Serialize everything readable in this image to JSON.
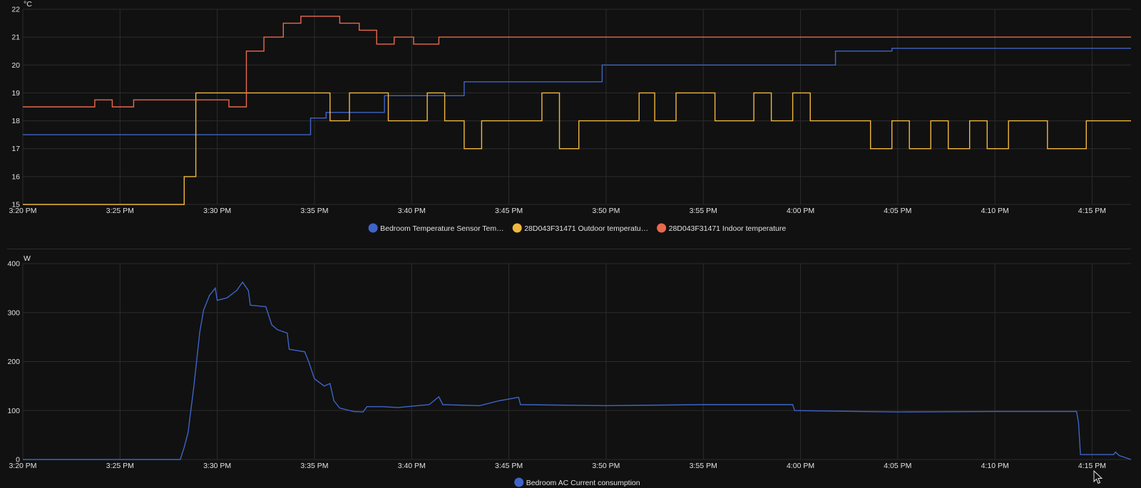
{
  "chart_data": [
    {
      "type": "line",
      "step": true,
      "unit": "°C",
      "ylim": [
        15,
        22
      ],
      "yticks": [
        "15",
        "16",
        "17",
        "18",
        "19",
        "20",
        "21",
        "22"
      ],
      "xlim": [
        "15:20",
        "16:17"
      ],
      "xticks": [
        "3:20 PM",
        "3:25 PM",
        "3:30 PM",
        "3:35 PM",
        "3:40 PM",
        "3:45 PM",
        "3:50 PM",
        "3:55 PM",
        "4:00 PM",
        "4:05 PM",
        "4:10 PM",
        "4:15 PM"
      ],
      "grid": true,
      "legend": "bottom",
      "series": [
        {
          "name": "Bedroom Temperature Sensor Tem…",
          "color": "#3f64c8",
          "points": [
            [
              "15:20",
              17.5
            ],
            [
              "15:34.8",
              17.5
            ],
            [
              "15:34.8",
              18.1
            ],
            [
              "15:35.6",
              18.1
            ],
            [
              "15:35.6",
              18.3
            ],
            [
              "15:38.6",
              18.3
            ],
            [
              "15:38.6",
              18.9
            ],
            [
              "15:42.7",
              18.9
            ],
            [
              "15:42.7",
              19.4
            ],
            [
              "15:49.8",
              19.4
            ],
            [
              "15:49.8",
              20.0
            ],
            [
              "16:01.8",
              20.0
            ],
            [
              "16:01.8",
              20.5
            ],
            [
              "16:04.7",
              20.5
            ],
            [
              "16:04.7",
              20.6
            ],
            [
              "16:17",
              20.6
            ]
          ]
        },
        {
          "name": "28D043F31471 Outdoor temperatu…",
          "color": "#f0b73e",
          "points": [
            [
              "15:20",
              15
            ],
            [
              "15:28.3",
              15
            ],
            [
              "15:28.3",
              16
            ],
            [
              "15:28.9",
              16
            ],
            [
              "15:28.9",
              19
            ],
            [
              "15:35.8",
              19
            ],
            [
              "15:35.8",
              18
            ],
            [
              "15:36.8",
              18
            ],
            [
              "15:36.8",
              19
            ],
            [
              "15:38.8",
              19
            ],
            [
              "15:38.8",
              18
            ],
            [
              "15:40.8",
              18
            ],
            [
              "15:40.8",
              19
            ],
            [
              "15:41.7",
              19
            ],
            [
              "15:41.7",
              18
            ],
            [
              "15:42.7",
              18
            ],
            [
              "15:42.7",
              17
            ],
            [
              "15:43.6",
              17
            ],
            [
              "15:43.6",
              18
            ],
            [
              "15:46.7",
              18
            ],
            [
              "15:46.7",
              19
            ],
            [
              "15:47.6",
              19
            ],
            [
              "15:47.6",
              17
            ],
            [
              "15:48.6",
              17
            ],
            [
              "15:48.6",
              18
            ],
            [
              "15:51.7",
              18
            ],
            [
              "15:51.7",
              19
            ],
            [
              "15:52.5",
              19
            ],
            [
              "15:52.5",
              18
            ],
            [
              "15:53.6",
              18
            ],
            [
              "15:53.6",
              19
            ],
            [
              "15:55.6",
              19
            ],
            [
              "15:55.6",
              18
            ],
            [
              "15:57.6",
              18
            ],
            [
              "15:57.6",
              19
            ],
            [
              "15:58.5",
              19
            ],
            [
              "15:58.5",
              18
            ],
            [
              "15:59.6",
              18
            ],
            [
              "15:59.6",
              19
            ],
            [
              "16:00.5",
              19
            ],
            [
              "16:00.5",
              18
            ],
            [
              "16:03.6",
              18
            ],
            [
              "16:03.6",
              17
            ],
            [
              "16:04.7",
              17
            ],
            [
              "16:04.7",
              18
            ],
            [
              "16:05.6",
              18
            ],
            [
              "16:05.6",
              17
            ],
            [
              "16:06.7",
              17
            ],
            [
              "16:06.7",
              18
            ],
            [
              "16:07.6",
              18
            ],
            [
              "16:07.6",
              17
            ],
            [
              "16:08.7",
              17
            ],
            [
              "16:08.7",
              18
            ],
            [
              "16:09.6",
              18
            ],
            [
              "16:09.6",
              17
            ],
            [
              "16:10.7",
              17
            ],
            [
              "16:10.7",
              18
            ],
            [
              "16:12.7",
              18
            ],
            [
              "16:12.7",
              17
            ],
            [
              "16:14.7",
              17
            ],
            [
              "16:14.7",
              18
            ],
            [
              "16:17",
              18
            ]
          ]
        },
        {
          "name": "28D043F31471 Indoor temperature",
          "color": "#e9694d",
          "points": [
            [
              "15:20",
              18.5
            ],
            [
              "15:23.7",
              18.5
            ],
            [
              "15:23.7",
              18.75
            ],
            [
              "15:24.6",
              18.75
            ],
            [
              "15:24.6",
              18.5
            ],
            [
              "15:25.7",
              18.5
            ],
            [
              "15:25.7",
              18.75
            ],
            [
              "15:30.6",
              18.75
            ],
            [
              "15:30.6",
              18.5
            ],
            [
              "15:31.5",
              18.5
            ],
            [
              "15:31.5",
              20.5
            ],
            [
              "15:32.4",
              20.5
            ],
            [
              "15:32.4",
              21.0
            ],
            [
              "15:33.4",
              21.0
            ],
            [
              "15:33.4",
              21.5
            ],
            [
              "15:34.3",
              21.5
            ],
            [
              "15:34.3",
              21.75
            ],
            [
              "15:36.3",
              21.75
            ],
            [
              "15:36.3",
              21.5
            ],
            [
              "15:37.3",
              21.5
            ],
            [
              "15:37.3",
              21.25
            ],
            [
              "15:38.2",
              21.25
            ],
            [
              "15:38.2",
              20.75
            ],
            [
              "15:39.1",
              20.75
            ],
            [
              "15:39.1",
              21.0
            ],
            [
              "15:40.1",
              21.0
            ],
            [
              "15:40.1",
              20.75
            ],
            [
              "15:41.4",
              20.75
            ],
            [
              "15:41.4",
              21.0
            ],
            [
              "16:17",
              21.0
            ]
          ]
        }
      ]
    },
    {
      "type": "line",
      "unit": "W",
      "ylim": [
        0,
        400
      ],
      "yticks": [
        "0",
        "100",
        "200",
        "300",
        "400"
      ],
      "xlim": [
        "15:20",
        "16:17"
      ],
      "xticks": [
        "3:20 PM",
        "3:25 PM",
        "3:30 PM",
        "3:35 PM",
        "3:40 PM",
        "3:45 PM",
        "3:50 PM",
        "3:55 PM",
        "4:00 PM",
        "4:05 PM",
        "4:10 PM",
        "4:15 PM"
      ],
      "grid": true,
      "legend": "bottom",
      "series": [
        {
          "name": "Bedroom AC Current consumption",
          "color": "#3f64c8",
          "points": [
            [
              "15:20",
              0
            ],
            [
              "15:28.1",
              0
            ],
            [
              "15:28.3",
              25
            ],
            [
              "15:28.5",
              55
            ],
            [
              "15:28.8",
              150
            ],
            [
              "15:29.1",
              260
            ],
            [
              "15:29.3",
              305
            ],
            [
              "15:29.6",
              335
            ],
            [
              "15:29.9",
              350
            ],
            [
              "15:30.0",
              325
            ],
            [
              "15:30.5",
              330
            ],
            [
              "15:31.0",
              345
            ],
            [
              "15:31.3",
              362
            ],
            [
              "15:31.6",
              345
            ],
            [
              "15:31.7",
              315
            ],
            [
              "15:32.5",
              312
            ],
            [
              "15:32.8",
              275
            ],
            [
              "15:33.1",
              265
            ],
            [
              "15:33.6",
              258
            ],
            [
              "15:33.7",
              225
            ],
            [
              "15:34.5",
              220
            ],
            [
              "15:34.7",
              200
            ],
            [
              "15:35.0",
              165
            ],
            [
              "15:35.5",
              150
            ],
            [
              "15:35.8",
              155
            ],
            [
              "15:36.0",
              120
            ],
            [
              "15:36.3",
              105
            ],
            [
              "15:37.0",
              98
            ],
            [
              "15:37.5",
              97
            ],
            [
              "15:37.7",
              108
            ],
            [
              "15:38.5",
              108
            ],
            [
              "15:39.3",
              106
            ],
            [
              "15:40.3",
              110
            ],
            [
              "15:40.9",
              112
            ],
            [
              "15:41.4",
              128
            ],
            [
              "15:41.6",
              112
            ],
            [
              "15:43.5",
              110
            ],
            [
              "15:44.5",
              120
            ],
            [
              "15:45.5",
              127
            ],
            [
              "15:45.6",
              112
            ],
            [
              "15:50",
              110
            ],
            [
              "15:55",
              112
            ],
            [
              "15:59.6",
              112
            ],
            [
              "15:59.7",
              100
            ],
            [
              "16:05",
              97
            ],
            [
              "16:10",
              98
            ],
            [
              "16:14.2",
              98
            ],
            [
              "16:14.3",
              75
            ],
            [
              "16:14.4",
              10
            ],
            [
              "16:16.1",
              10
            ],
            [
              "16:16.2",
              15
            ],
            [
              "16:16.4",
              8
            ],
            [
              "16:17",
              0
            ]
          ]
        }
      ]
    }
  ]
}
